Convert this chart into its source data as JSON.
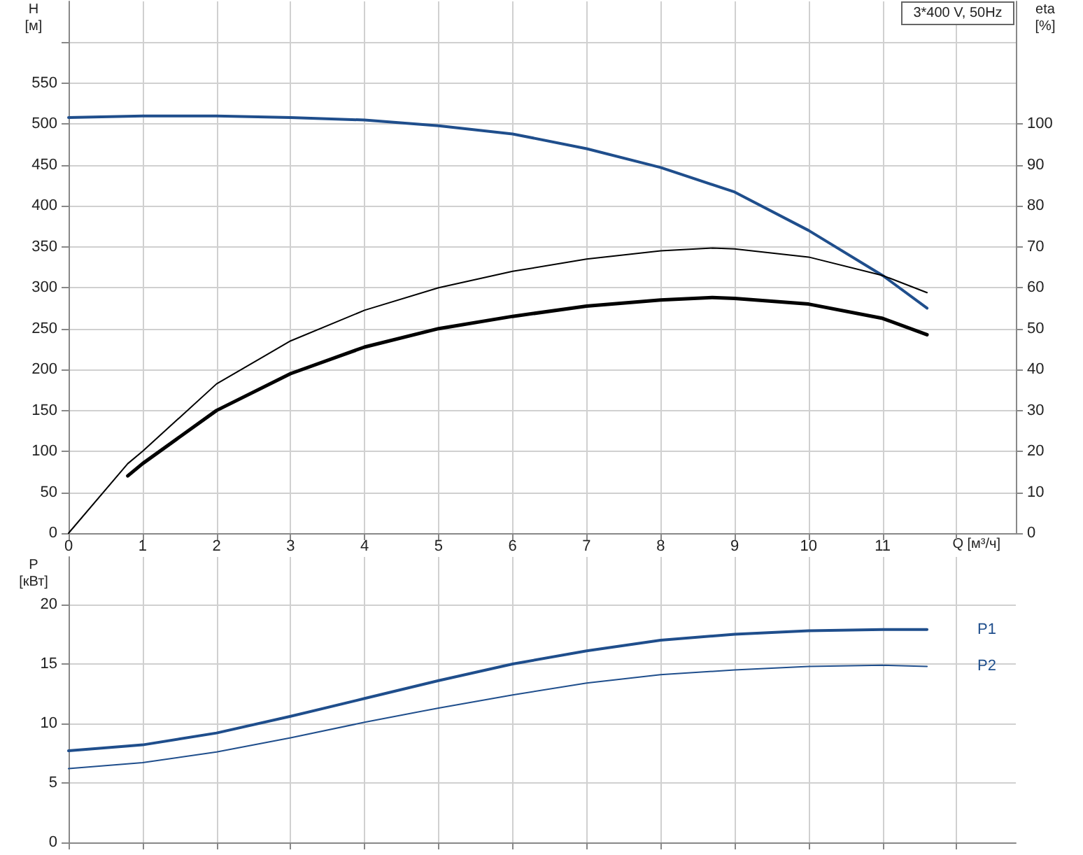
{
  "chart_data": [
    {
      "type": "line",
      "xlabel": "Q [м³/ч]",
      "ylabel": "H [м]",
      "y2label": "eta [%]",
      "annotations": [
        "3*400 V, 50Hz"
      ],
      "xlim": [
        0,
        12.8
      ],
      "xticks": [
        0,
        1,
        2,
        3,
        4,
        5,
        6,
        7,
        8,
        9,
        10,
        11,
        {
          "value": 12,
          "label": null
        }
      ],
      "ylim": [
        0,
        650
      ],
      "yticks": [
        0,
        50,
        100,
        150,
        200,
        250,
        300,
        350,
        400,
        450,
        500,
        550,
        {
          "value": 600,
          "label": null
        }
      ],
      "y2lim": [
        0,
        130
      ],
      "y2ticks": [
        0,
        10,
        20,
        30,
        40,
        50,
        60,
        70,
        80,
        90,
        100
      ],
      "series": [
        {
          "color": "#1f4e8c",
          "x": [
            0,
            1,
            2,
            3,
            4,
            5,
            6,
            7,
            8,
            9,
            10,
            11,
            11.6
          ],
          "values": [
            508,
            510,
            510,
            508,
            505,
            498,
            488,
            470,
            447,
            417,
            370,
            315,
            275
          ]
        },
        {
          "color": "#000000",
          "axis": "y2",
          "x": [
            0,
            0.8,
            1,
            2,
            3,
            4,
            5,
            6,
            7,
            8,
            8.7,
            9,
            10,
            11,
            11.6
          ],
          "values": [
            0,
            17,
            20,
            36.5,
            47,
            54.5,
            60,
            64,
            67,
            69,
            69.7,
            69.5,
            67.5,
            63,
            58.8
          ]
        },
        {
          "color": "#000000",
          "axis": "y2",
          "x": [
            0.8,
            1,
            2,
            3,
            4,
            5,
            6,
            7,
            8,
            8.7,
            9,
            10,
            11,
            11.6
          ],
          "values": [
            14,
            17,
            30,
            39,
            45.5,
            50,
            53,
            55.5,
            57,
            57.6,
            57.4,
            56,
            52.5,
            48.5
          ]
        }
      ],
      "grid": true,
      "legend": false,
      "marker": "none",
      "line_style": "solid"
    },
    {
      "type": "line",
      "ylabel": "P [кВт]",
      "xlim": [
        0,
        12.8
      ],
      "xticks": [
        0,
        1,
        2,
        3,
        4,
        5,
        6,
        7,
        8,
        9,
        10,
        11,
        12
      ],
      "ylim": [
        0,
        24
      ],
      "yticks": [
        0,
        5,
        10,
        15,
        20
      ],
      "tick_labels": "y",
      "series": [
        {
          "name": "P1",
          "color": "#1f4e8c",
          "x": [
            0,
            0.8,
            1,
            2,
            3,
            4,
            5,
            6,
            7,
            8,
            9,
            10,
            11,
            11.6
          ],
          "values": [
            7.7,
            8.1,
            8.2,
            9.2,
            10.6,
            12.1,
            13.6,
            15,
            16.1,
            17,
            17.5,
            17.8,
            17.9,
            17.9
          ]
        },
        {
          "name": "P2",
          "color": "#1f4e8c",
          "x": [
            0,
            1,
            2,
            3,
            4,
            5,
            6,
            7,
            8,
            9,
            10,
            11,
            11.6
          ],
          "values": [
            6.2,
            6.7,
            7.6,
            8.8,
            10.1,
            11.3,
            12.4,
            13.4,
            14.1,
            14.5,
            14.8,
            14.9,
            14.8
          ]
        }
      ],
      "grid": true,
      "legend": false,
      "marker": "none",
      "line_style": "solid"
    }
  ]
}
